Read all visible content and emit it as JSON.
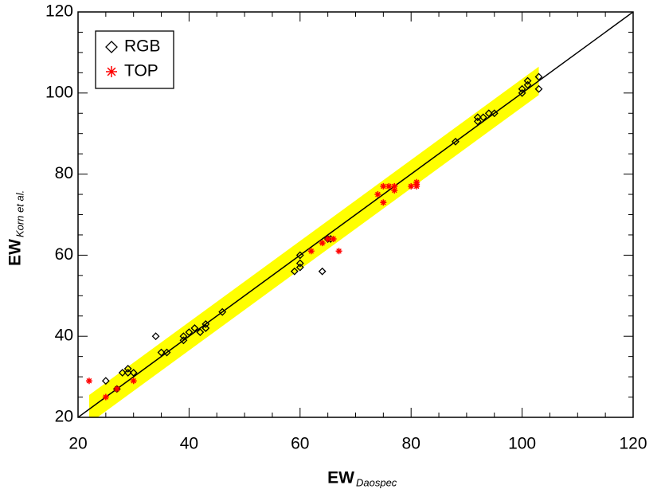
{
  "chart_data": {
    "type": "scatter",
    "x_label": "EW",
    "x_label_sub": "Daospec",
    "y_label": "EW",
    "y_label_sub": "Korn et al.",
    "xlim": [
      20,
      120
    ],
    "ylim": [
      20,
      120
    ],
    "xticks": [
      20,
      40,
      60,
      80,
      100,
      120
    ],
    "yticks": [
      20,
      40,
      60,
      80,
      100,
      120
    ],
    "identity_line": true,
    "band": {
      "xlim": [
        22,
        103
      ],
      "halfwidth": 3.5,
      "color": "#ffff00"
    },
    "legend": "top-left",
    "series": [
      {
        "name": "RGB",
        "marker": "diamond",
        "color": "#000000",
        "x": [
          25,
          27,
          28,
          29,
          29,
          30,
          34,
          35,
          36,
          39,
          39,
          40,
          41,
          42,
          43,
          43,
          46,
          59,
          60,
          60,
          60,
          64,
          65,
          65.5,
          88,
          92,
          92,
          93,
          94,
          95,
          100,
          100,
          101,
          101,
          103,
          103
        ],
        "values": [
          29,
          27,
          31,
          32,
          31,
          31,
          40,
          36,
          36,
          39,
          40,
          41,
          42,
          41,
          42,
          43,
          46,
          56,
          57,
          58,
          60,
          56,
          64,
          64,
          88,
          93,
          94,
          94,
          95,
          95,
          100,
          101,
          102,
          103,
          104,
          101
        ]
      },
      {
        "name": "TOP",
        "marker": "asterisk",
        "color": "#ff0000",
        "x": [
          22,
          25,
          27,
          30,
          62,
          64,
          65,
          66,
          67,
          74,
          75,
          75,
          76,
          77,
          77,
          80,
          81,
          81,
          81
        ],
        "values": [
          29,
          25,
          27,
          29,
          61,
          63,
          64,
          64,
          61,
          75,
          73,
          77,
          77,
          76,
          77,
          77,
          77,
          78,
          77.5
        ]
      }
    ]
  }
}
